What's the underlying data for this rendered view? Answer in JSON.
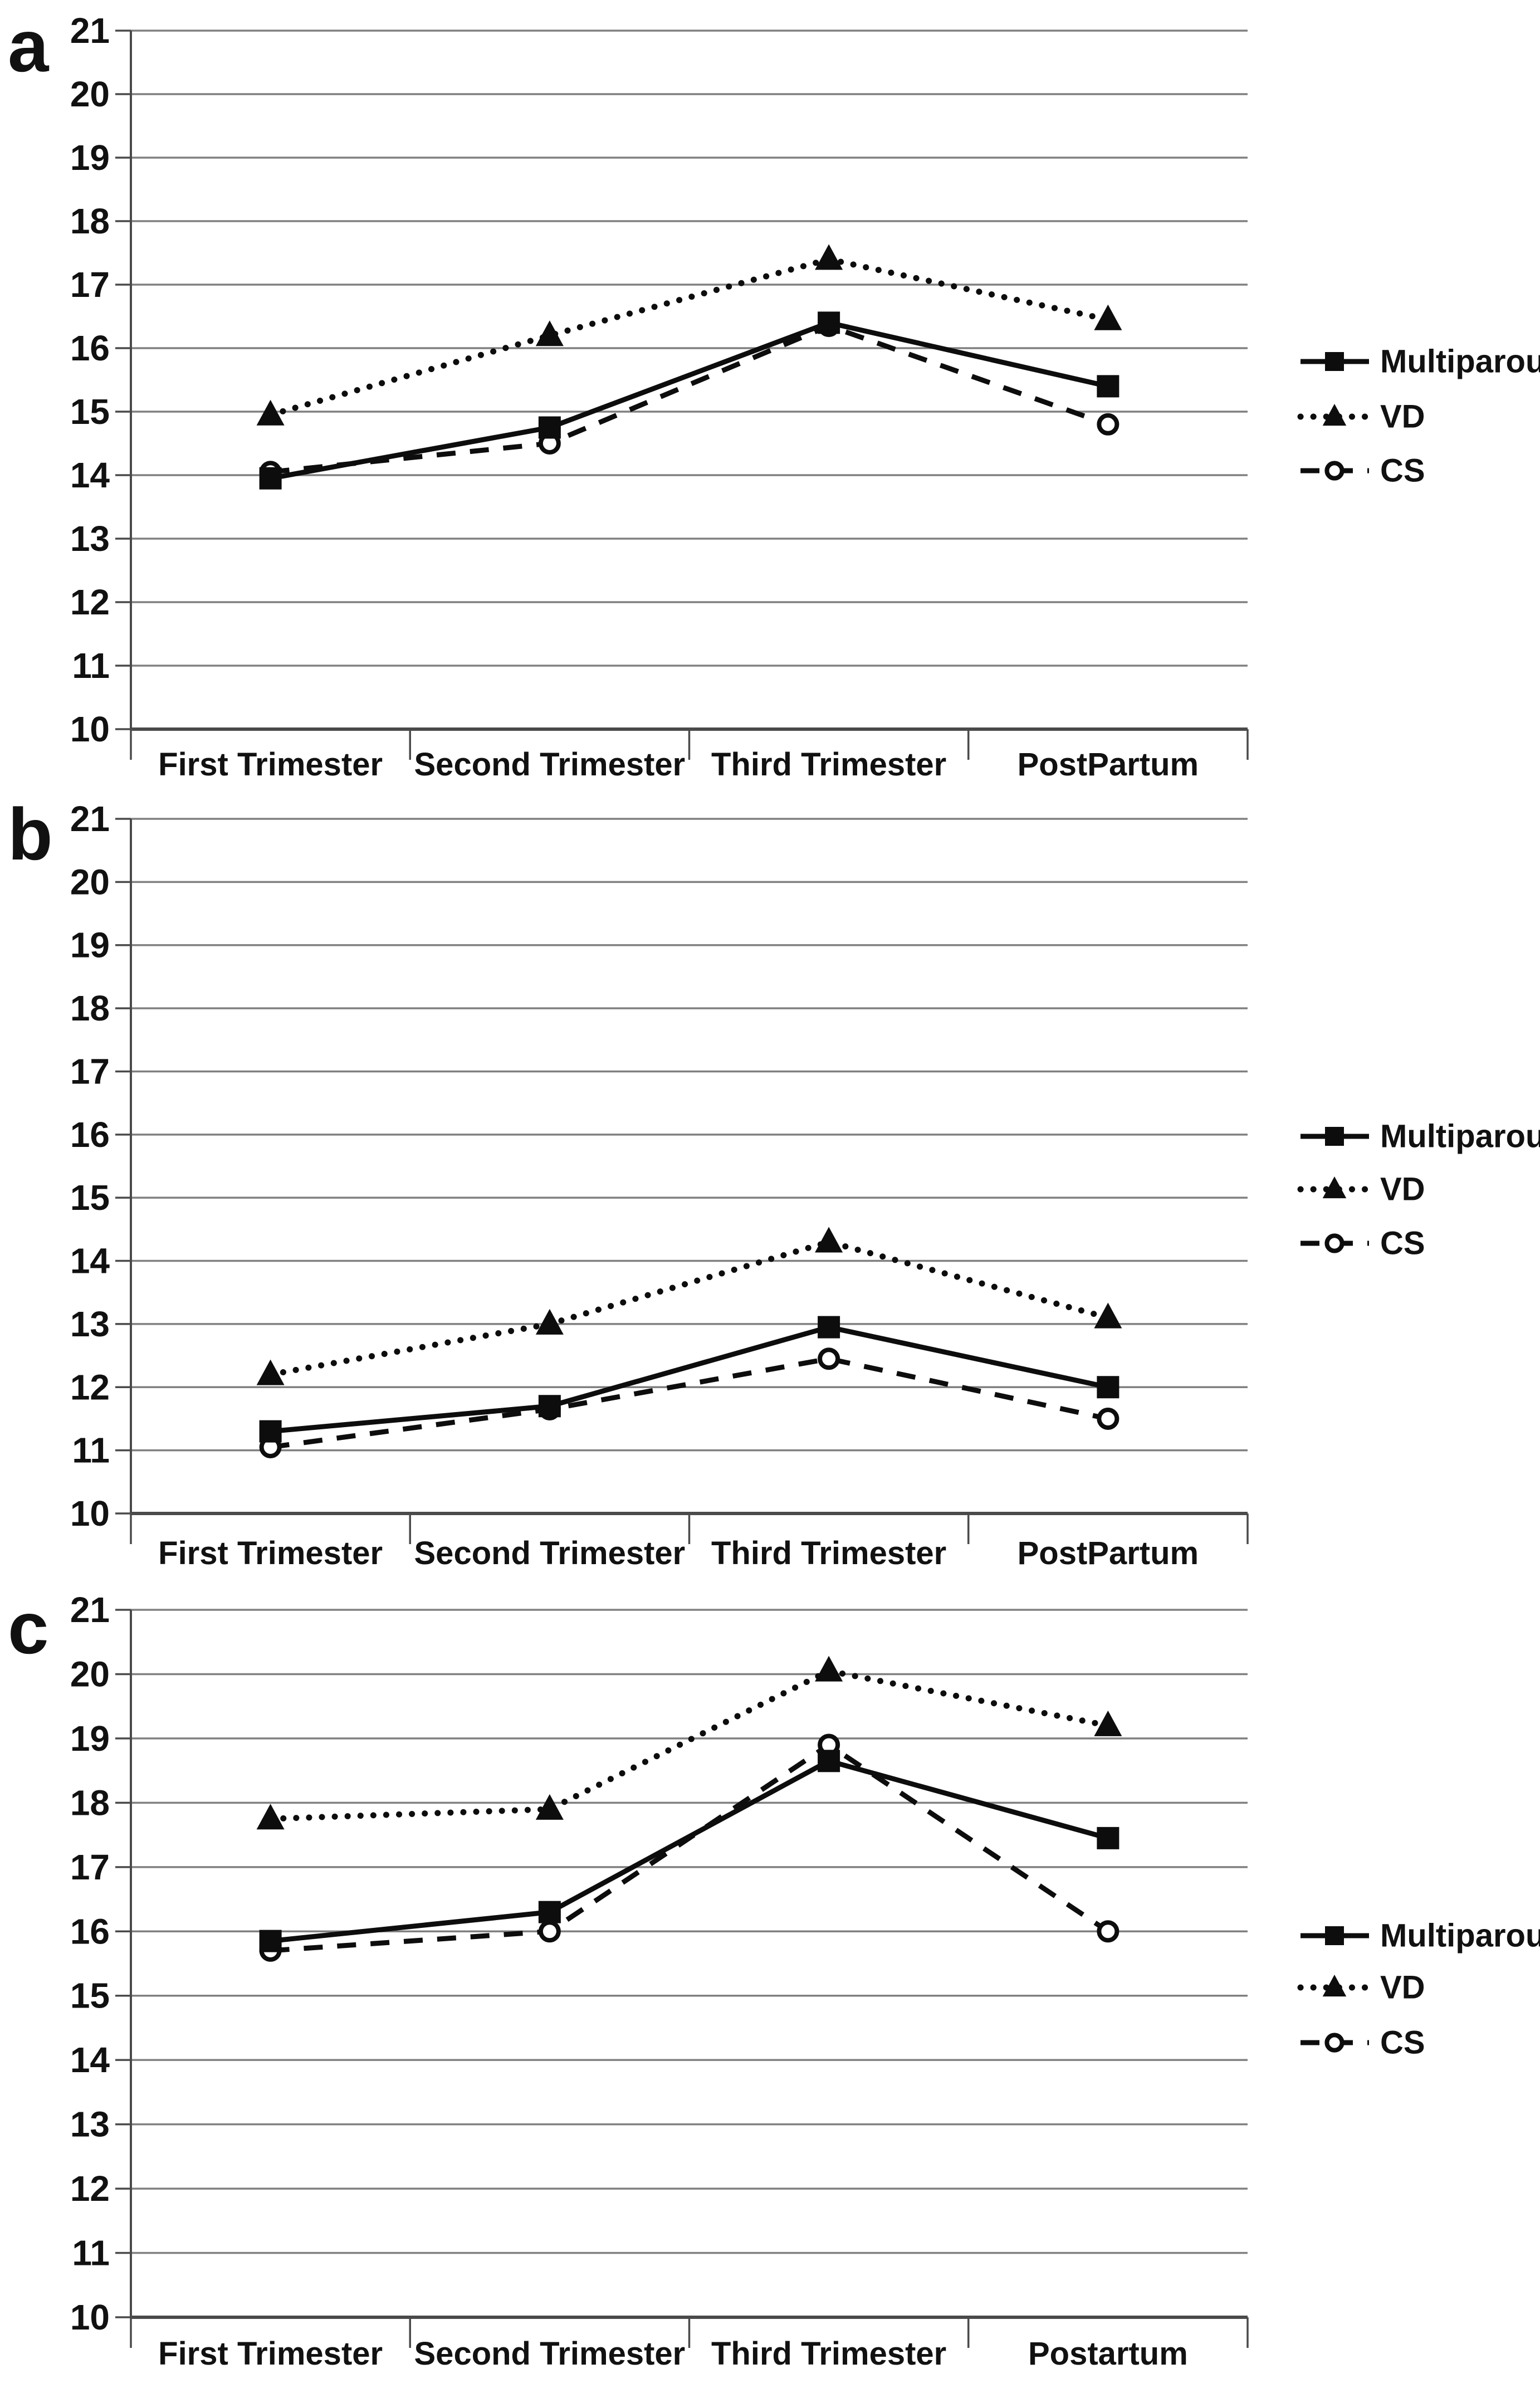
{
  "chart_data": [
    {
      "type": "line",
      "panel_label": "a",
      "categories": [
        "First Trimester",
        "Second Trimester",
        "Third Trimester",
        "PostPartum"
      ],
      "series": [
        {
          "name": "Multiparous",
          "line_style": "solid",
          "marker": "filled-square",
          "values": [
            13.95,
            14.75,
            16.4,
            15.4
          ]
        },
        {
          "name": "VD",
          "line_style": "dotted",
          "marker": "filled-triangle",
          "values": [
            14.95,
            16.2,
            17.4,
            16.45
          ]
        },
        {
          "name": "CS",
          "line_style": "dashed",
          "marker": "open-circle",
          "values": [
            14.05,
            14.5,
            16.35,
            14.8
          ]
        }
      ],
      "ylim": [
        10,
        21
      ],
      "y_tick_labels": [
        "21",
        "20",
        "19",
        "18",
        "17",
        "16",
        "15",
        "14",
        "13",
        "12",
        "11",
        "10"
      ],
      "grid": "horizontal",
      "legend_position": "right",
      "legend_labels": [
        "Multiparous",
        "VD",
        "CS"
      ]
    },
    {
      "type": "line",
      "panel_label": "b",
      "categories": [
        "First Trimester",
        "Second Trimester",
        "Third Trimester",
        "PostPartum"
      ],
      "series": [
        {
          "name": "Multiparous",
          "line_style": "solid",
          "marker": "filled-square",
          "values": [
            11.3,
            11.7,
            12.95,
            12.0
          ]
        },
        {
          "name": "VD",
          "line_style": "dotted",
          "marker": "filled-triangle",
          "values": [
            12.2,
            13.0,
            14.3,
            13.1
          ]
        },
        {
          "name": "CS",
          "line_style": "dashed",
          "marker": "open-circle",
          "values": [
            11.05,
            11.65,
            12.45,
            11.5
          ]
        }
      ],
      "ylim": [
        10,
        21
      ],
      "y_tick_labels": [
        "21",
        "20",
        "19",
        "18",
        "17",
        "16",
        "15",
        "14",
        "13",
        "12",
        "11",
        "10"
      ],
      "grid": "horizontal",
      "legend_position": "right",
      "legend_labels": [
        "Multiparous",
        "VD",
        "CS"
      ]
    },
    {
      "type": "line",
      "panel_label": "c",
      "categories": [
        "First Trimester",
        "Second Trimester",
        "Third Trimester",
        "Postartum"
      ],
      "series": [
        {
          "name": "Multiparous",
          "line_style": "solid",
          "marker": "filled-square",
          "values": [
            15.85,
            16.3,
            18.65,
            17.45
          ]
        },
        {
          "name": "VD",
          "line_style": "dotted",
          "marker": "filled-triangle",
          "values": [
            17.75,
            17.9,
            20.05,
            19.2
          ]
        },
        {
          "name": "CS",
          "line_style": "dashed",
          "marker": "open-circle",
          "values": [
            15.7,
            16.0,
            18.9,
            16.0
          ]
        }
      ],
      "ylim": [
        10,
        21
      ],
      "y_tick_labels": [
        "21",
        "20",
        "19",
        "18",
        "17",
        "16",
        "15",
        "14",
        "13",
        "12",
        "11",
        "10"
      ],
      "grid": "horizontal",
      "legend_position": "right",
      "legend_labels": [
        "Multiparous",
        "VD",
        "CS"
      ]
    }
  ],
  "colors": {
    "series": "#0d0d0d",
    "grid": "#808080",
    "axis": "#4a4a4a",
    "text": "#111111",
    "marker_fill_open": "#ffffff"
  }
}
